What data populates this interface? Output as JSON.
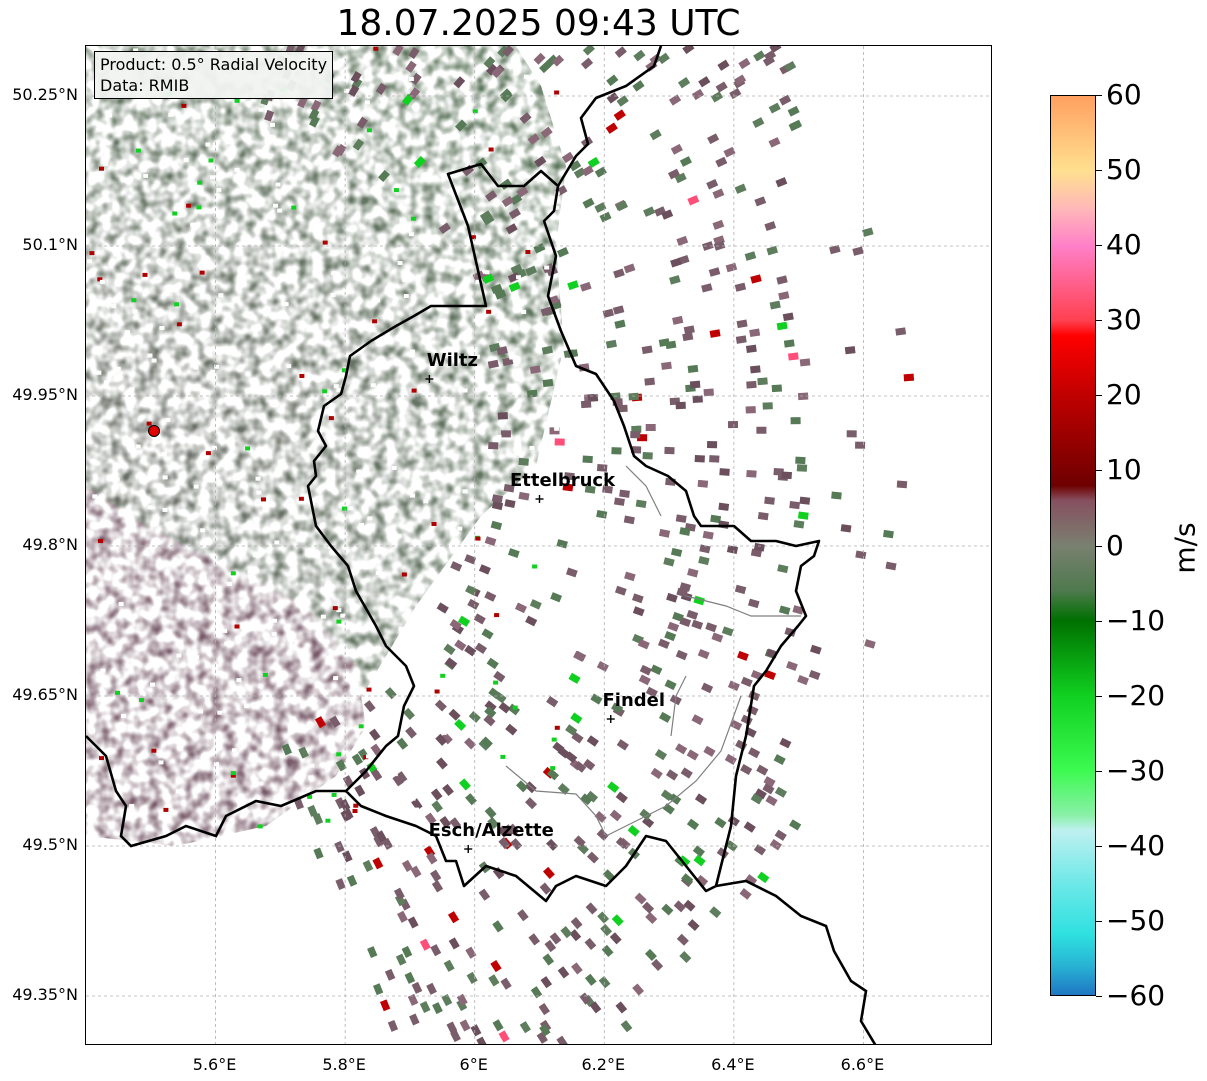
{
  "title": "18.07.2025 09:43 UTC",
  "info_box": {
    "product": "Product: 0.5° Radial Velocity",
    "data": "Data: RMIB"
  },
  "axes": {
    "lat_labels": [
      "50.25°N",
      "50.1°N",
      "49.95°N",
      "49.8°N",
      "49.65°N",
      "49.5°N",
      "49.35°N"
    ],
    "lat_values": [
      50.25,
      50.1,
      49.95,
      49.8,
      49.65,
      49.5,
      49.35
    ],
    "lon_labels": [
      "5.6°E",
      "5.8°E",
      "6°E",
      "6.2°E",
      "6.4°E",
      "6.6°E"
    ],
    "lon_values": [
      5.6,
      5.8,
      6.0,
      6.2,
      6.4,
      6.6
    ],
    "lon_range": [
      5.4,
      6.8
    ],
    "lat_range": [
      49.3,
      50.3
    ]
  },
  "cities": [
    {
      "name": "Wiltz",
      "lon": 5.93,
      "lat": 49.967
    },
    {
      "name": "Ettelbruck",
      "lon": 6.1,
      "lat": 49.847
    },
    {
      "name": "Findel",
      "lon": 6.21,
      "lat": 49.627
    },
    {
      "name": "Esch/Alzette",
      "lon": 5.99,
      "lat": 49.497
    }
  ],
  "radar_site": {
    "lon": 5.505,
    "lat": 49.915,
    "color": "#e00000"
  },
  "colorbar": {
    "label": "m/s",
    "min": -60,
    "max": 60,
    "tick_labels": [
      "60",
      "50",
      "40",
      "30",
      "20",
      "10",
      "0",
      "−10",
      "−20",
      "−30",
      "−40",
      "−50",
      "−60"
    ],
    "tick_values": [
      60,
      50,
      40,
      30,
      20,
      10,
      0,
      -10,
      -20,
      -30,
      -40,
      -50,
      -60
    ],
    "stops": [
      {
        "v": -60,
        "c": "#1f77c4"
      },
      {
        "v": -56,
        "c": "#28b4d4"
      },
      {
        "v": -52,
        "c": "#2ee0e0"
      },
      {
        "v": -45,
        "c": "#6fe8e8"
      },
      {
        "v": -38,
        "c": "#bff0f0"
      },
      {
        "v": -36,
        "c": "#8af0a8"
      },
      {
        "v": -30,
        "c": "#3cfa50"
      },
      {
        "v": -20,
        "c": "#10d020"
      },
      {
        "v": -10,
        "c": "#007000"
      },
      {
        "v": -6,
        "c": "#4e7a4e"
      },
      {
        "v": 0,
        "c": "#7a8070"
      },
      {
        "v": 6,
        "c": "#865060"
      },
      {
        "v": 8,
        "c": "#6e0000"
      },
      {
        "v": 20,
        "c": "#c00000"
      },
      {
        "v": 28,
        "c": "#ff0000"
      },
      {
        "v": 30,
        "c": "#ff4050"
      },
      {
        "v": 40,
        "c": "#ff80c8"
      },
      {
        "v": 45,
        "c": "#ffb8b8"
      },
      {
        "v": 50,
        "c": "#ffe090"
      },
      {
        "v": 60,
        "c": "#ffa060"
      }
    ]
  },
  "colors": {
    "echo_green": "#5d7d5d",
    "echo_mauve": "#7a5d6b",
    "border_main": "#000000",
    "border_minor": "#808080",
    "grid": "#b0b0b0"
  }
}
